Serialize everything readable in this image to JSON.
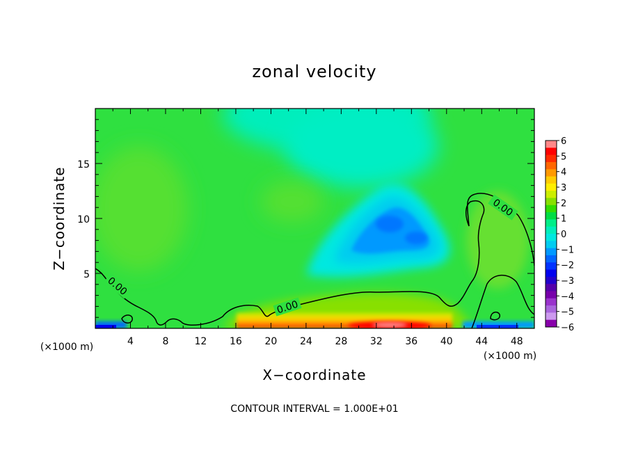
{
  "chart_data": {
    "type": "heatmap",
    "title": "zonal velocity",
    "xlabel": "X−coordinate",
    "ylabel": "Z−coordinate",
    "x_unit_left": "(×1000 m)",
    "x_unit_right": "(×1000 m)",
    "xlim": [
      0,
      50
    ],
    "ylim": [
      0,
      20
    ],
    "xticks": [
      4,
      8,
      12,
      16,
      20,
      24,
      28,
      32,
      36,
      40,
      44,
      48
    ],
    "yticks": [
      5,
      10,
      15
    ],
    "footer": "CONTOUR INTERVAL = 1.000E+01",
    "colorbar": {
      "ticks": [
        "6",
        "5",
        "4",
        "3",
        "2",
        "1",
        "0",
        "−1",
        "−2",
        "−3",
        "−4",
        "−5",
        "−6"
      ],
      "colors": [
        "#ff0000",
        "#ff2a00",
        "#ff6600",
        "#ff9900",
        "#ffcc00",
        "#ffee00",
        "#ccee00",
        "#88e000",
        "#33dd00",
        "#00dd44",
        "#00ee88",
        "#00eebb",
        "#00e8e0",
        "#00ccf0",
        "#0099ff",
        "#0066ff",
        "#0033ff",
        "#0000ee",
        "#2200cc",
        "#5500aa",
        "#7700aa",
        "#9933cc",
        "#aa66dd",
        "#cc99ee"
      ],
      "top_color": "#ff8888",
      "bottom_color": "#8800aa"
    },
    "contour_labels": [
      {
        "text": "0.00",
        "x": 1.3,
        "z": 4.0
      },
      {
        "text": "0.00",
        "x": 21.8,
        "z": 1.8
      },
      {
        "text": "0.00",
        "x": 47.0,
        "z": 10.8
      }
    ]
  }
}
